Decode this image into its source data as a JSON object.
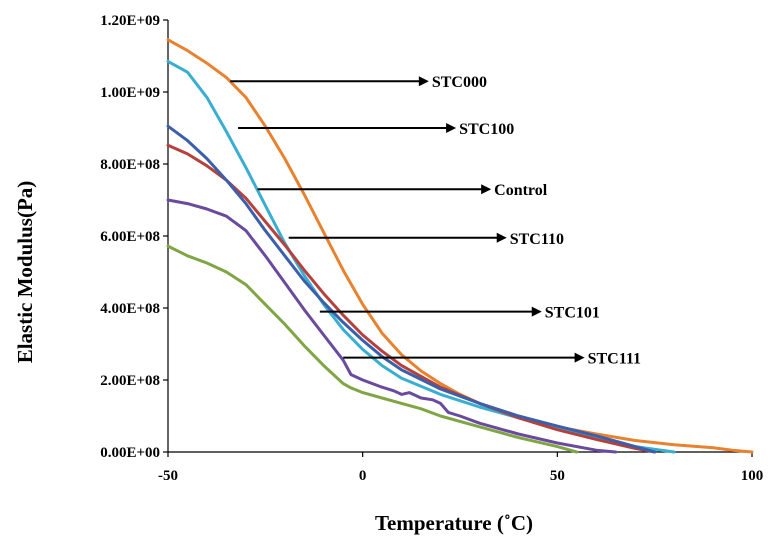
{
  "chart_data": {
    "type": "line",
    "title": "",
    "xlabel": "Temperature (˚C)",
    "ylabel": "Elastic Modulus(Pa)",
    "xlim": [
      -50,
      100
    ],
    "ylim": [
      0,
      1200000000
    ],
    "x_ticks": [
      -50,
      0,
      50,
      100
    ],
    "x_tick_labels": [
      "-50",
      "0",
      "50",
      "100"
    ],
    "y_ticks": [
      0,
      200000000,
      400000000,
      600000000,
      800000000,
      1000000000,
      1200000000
    ],
    "y_tick_labels": [
      "0.00E+00",
      "2.00E+08",
      "4.00E+08",
      "6.00E+08",
      "8.00E+08",
      "1.00E+09",
      "1.20E+09"
    ],
    "grid": false,
    "legend": "none",
    "series": [
      {
        "name": "STC000",
        "color": "#e8822e",
        "x": [
          -50,
          -45,
          -40,
          -35,
          -30,
          -25,
          -20,
          -15,
          -10,
          -5,
          0,
          5,
          10,
          15,
          20,
          25,
          30,
          40,
          50,
          60,
          70,
          80,
          90,
          95,
          100
        ],
        "y": [
          1145000000,
          1115000000,
          1080000000,
          1040000000,
          985000000,
          905000000,
          815000000,
          715000000,
          610000000,
          505000000,
          410000000,
          330000000,
          270000000,
          225000000,
          190000000,
          160000000,
          135000000,
          100000000,
          70000000,
          50000000,
          32000000,
          20000000,
          12000000,
          5000000,
          0
        ]
      },
      {
        "name": "STC100",
        "color": "#3aaed0",
        "x": [
          -50,
          -45,
          -40,
          -35,
          -30,
          -25,
          -20,
          -15,
          -10,
          -5,
          0,
          5,
          10,
          20,
          30,
          40,
          50,
          60,
          70,
          80
        ],
        "y": [
          1085000000,
          1055000000,
          985000000,
          890000000,
          790000000,
          685000000,
          580000000,
          490000000,
          410000000,
          340000000,
          285000000,
          240000000,
          205000000,
          160000000,
          125000000,
          95000000,
          65000000,
          40000000,
          15000000,
          0
        ]
      },
      {
        "name": "Control",
        "color": "#b5413c",
        "x": [
          -50,
          -45,
          -40,
          -35,
          -30,
          -25,
          -20,
          -15,
          -10,
          -5,
          0,
          5,
          10,
          20,
          30,
          40,
          50,
          60,
          70,
          75
        ],
        "y": [
          852000000,
          828000000,
          795000000,
          755000000,
          705000000,
          640000000,
          575000000,
          505000000,
          440000000,
          380000000,
          325000000,
          280000000,
          240000000,
          180000000,
          135000000,
          95000000,
          62000000,
          35000000,
          10000000,
          0
        ]
      },
      {
        "name": "STC110",
        "color": "#3c5fab",
        "x": [
          -50,
          -45,
          -40,
          -35,
          -30,
          -25,
          -20,
          -15,
          -10,
          -5,
          0,
          5,
          10,
          20,
          30,
          40,
          50,
          60,
          70,
          75
        ],
        "y": [
          905000000,
          865000000,
          815000000,
          755000000,
          690000000,
          615000000,
          545000000,
          475000000,
          415000000,
          360000000,
          310000000,
          265000000,
          228000000,
          175000000,
          135000000,
          100000000,
          72000000,
          45000000,
          15000000,
          0
        ]
      },
      {
        "name": "STC101",
        "color": "#6a4a9d",
        "x": [
          -50,
          -45,
          -40,
          -35,
          -30,
          -25,
          -20,
          -15,
          -10,
          -5,
          -3,
          0,
          5,
          8,
          10,
          12,
          15,
          18,
          20,
          22,
          25,
          30,
          40,
          50,
          60,
          65
        ],
        "y": [
          700000000,
          690000000,
          675000000,
          655000000,
          615000000,
          545000000,
          470000000,
          395000000,
          325000000,
          255000000,
          215000000,
          200000000,
          180000000,
          170000000,
          160000000,
          165000000,
          150000000,
          145000000,
          135000000,
          110000000,
          100000000,
          80000000,
          50000000,
          25000000,
          5000000,
          0
        ]
      },
      {
        "name": "STC111",
        "color": "#80a544",
        "x": [
          -50,
          -45,
          -40,
          -35,
          -30,
          -25,
          -20,
          -15,
          -10,
          -5,
          -3,
          0,
          5,
          10,
          15,
          20,
          30,
          40,
          50,
          55
        ],
        "y": [
          572000000,
          545000000,
          525000000,
          500000000,
          465000000,
          410000000,
          355000000,
          295000000,
          240000000,
          190000000,
          178000000,
          165000000,
          150000000,
          135000000,
          120000000,
          100000000,
          70000000,
          40000000,
          15000000,
          0
        ]
      }
    ],
    "annotations": [
      {
        "text": "STC000",
        "series": "STC000",
        "x_start": -34,
        "x_end": 17,
        "y": 1030000000
      },
      {
        "text": "STC100",
        "series": "STC100",
        "x_start": -32,
        "x_end": 24,
        "y": 900000000
      },
      {
        "text": "Control",
        "series": "Control",
        "x_start": -27,
        "x_end": 33,
        "y": 730000000
      },
      {
        "text": "STC110",
        "series": "STC110",
        "x_start": -19,
        "x_end": 37,
        "y": 595000000
      },
      {
        "text": "STC101",
        "series": "STC101",
        "x_start": -11,
        "x_end": 46,
        "y": 390000000
      },
      {
        "text": "STC111",
        "series": "STC111",
        "x_start": -5,
        "x_end": 57,
        "y": 262000000
      }
    ]
  }
}
